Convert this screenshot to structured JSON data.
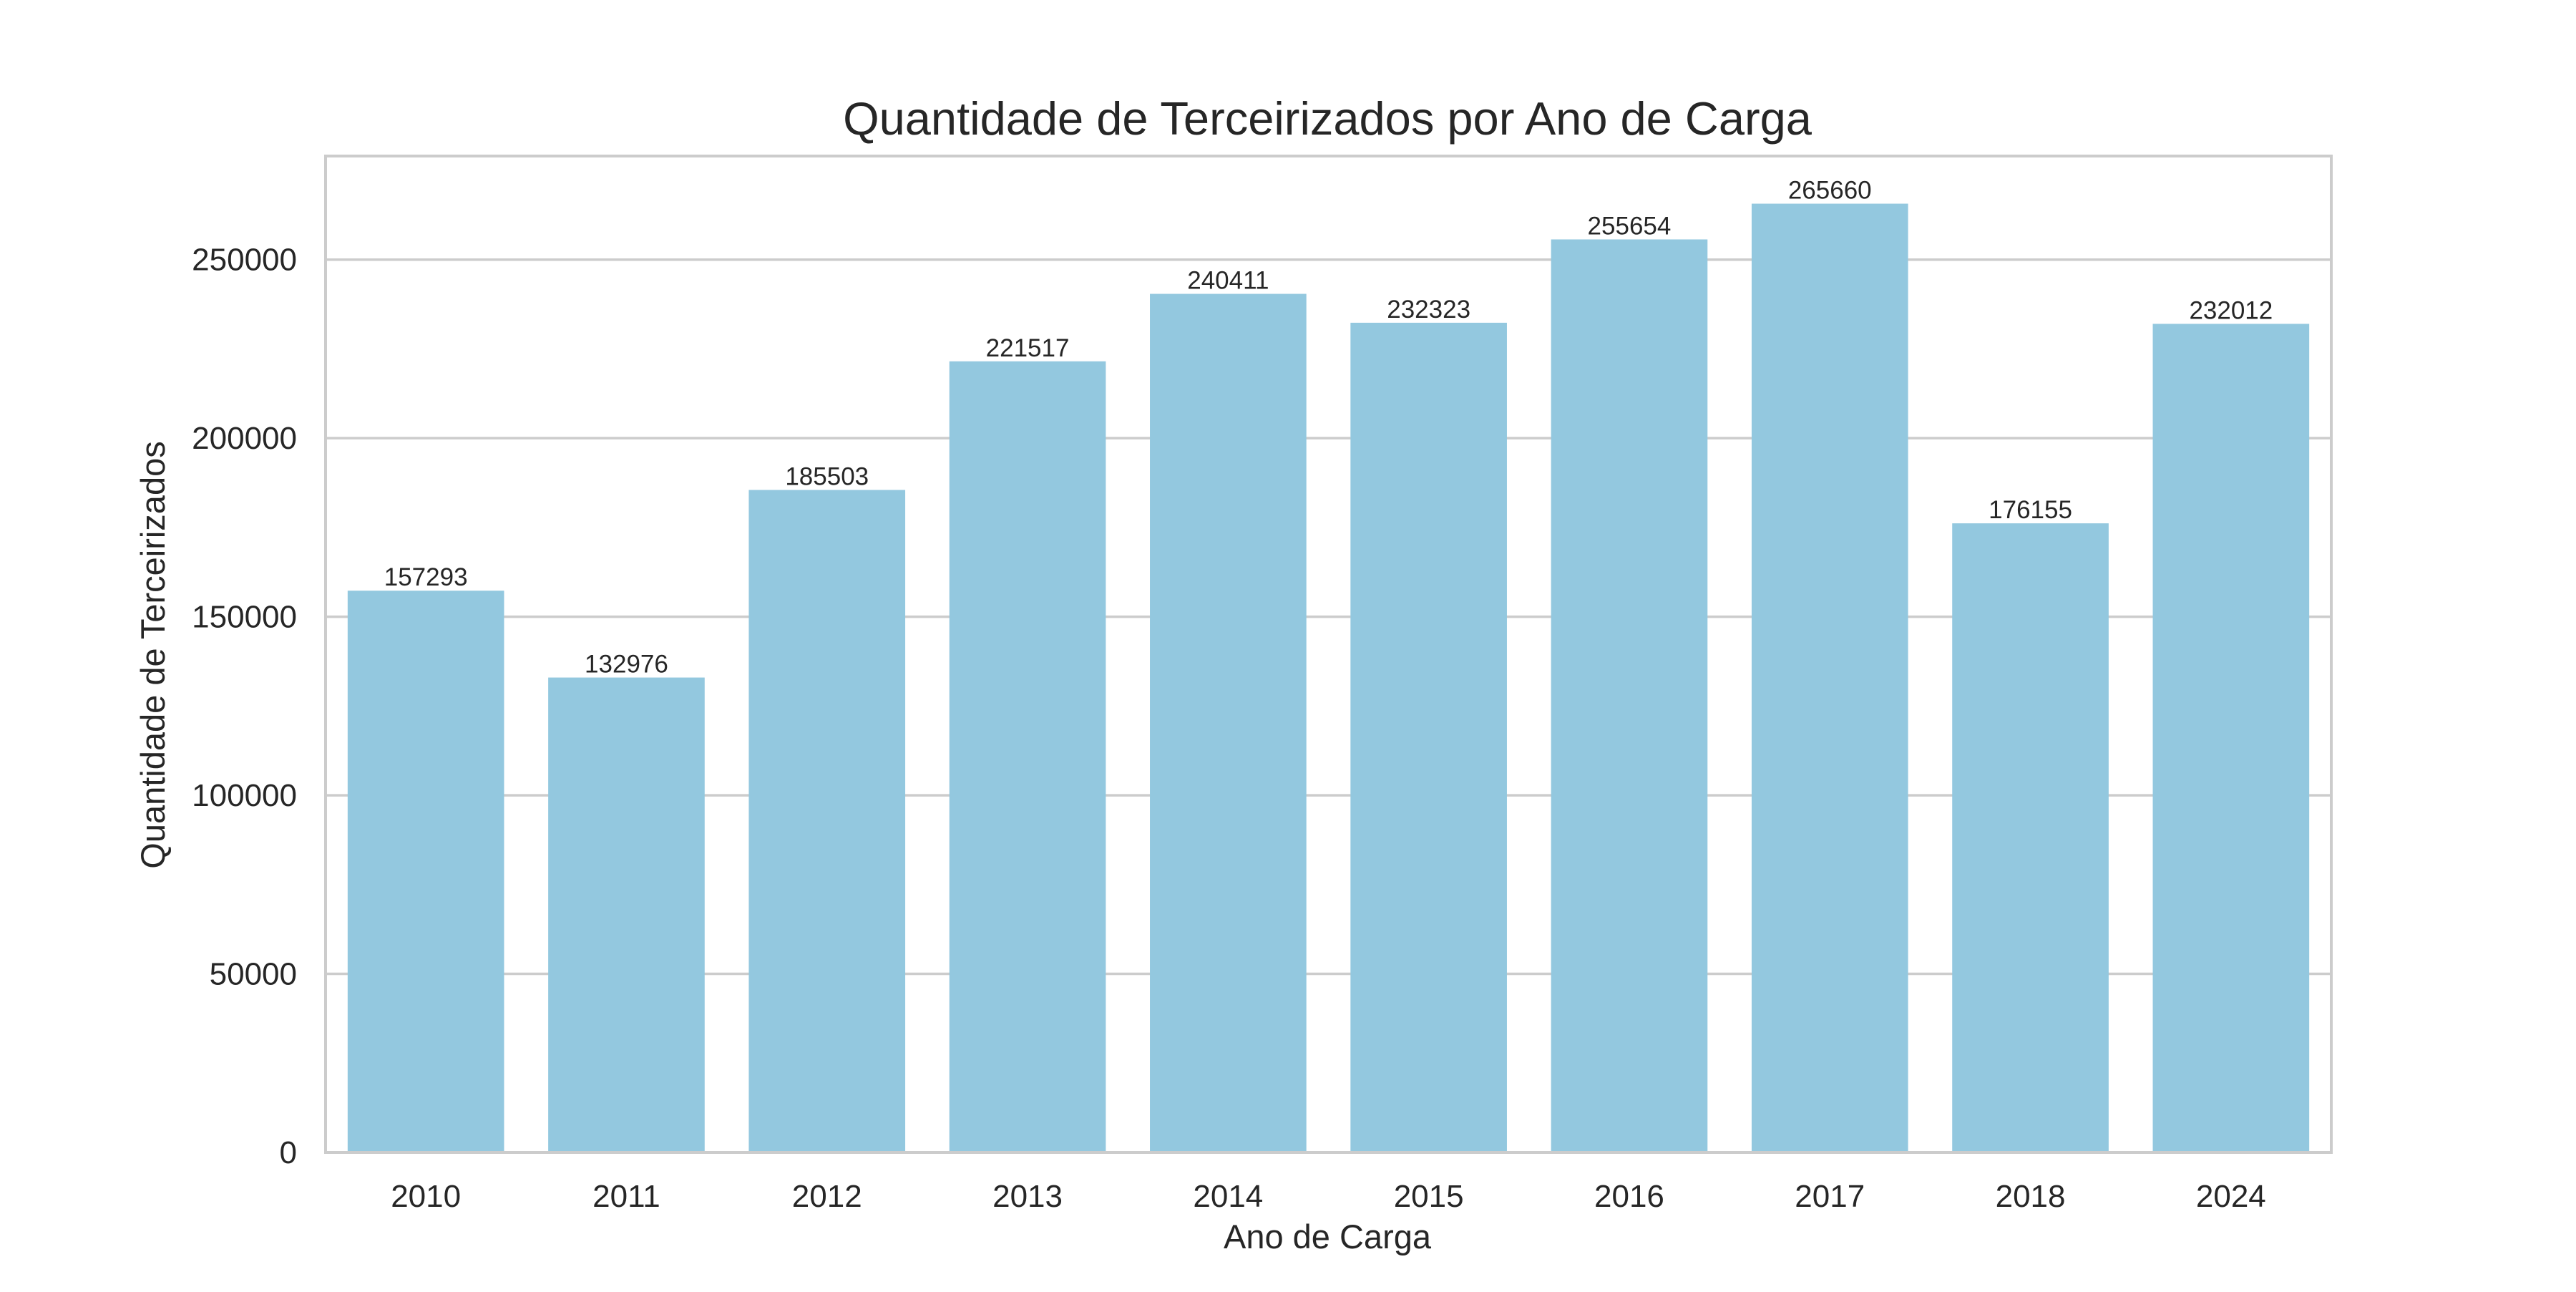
{
  "chart_data": {
    "type": "bar",
    "title": "Quantidade de Terceirizados por Ano de Carga",
    "xlabel": "Ano de Carga",
    "ylabel": "Quantidade de Terceirizados",
    "categories": [
      "2010",
      "2011",
      "2012",
      "2013",
      "2014",
      "2015",
      "2016",
      "2017",
      "2018",
      "2024"
    ],
    "values": [
      157293,
      132976,
      185503,
      221517,
      240411,
      232323,
      255654,
      265660,
      176155,
      232012
    ],
    "data_labels": [
      "157293",
      "132976",
      "185503",
      "221517",
      "240411",
      "232323",
      "255654",
      "265660",
      "176155",
      "232012"
    ],
    "ylim": [
      0,
      279000
    ],
    "yticks": [
      0,
      50000,
      100000,
      150000,
      200000,
      250000
    ],
    "ytick_labels": [
      "0",
      "50000",
      "100000",
      "150000",
      "200000",
      "250000"
    ],
    "grid": "horizontal",
    "bar_color": "#93C8DF"
  }
}
